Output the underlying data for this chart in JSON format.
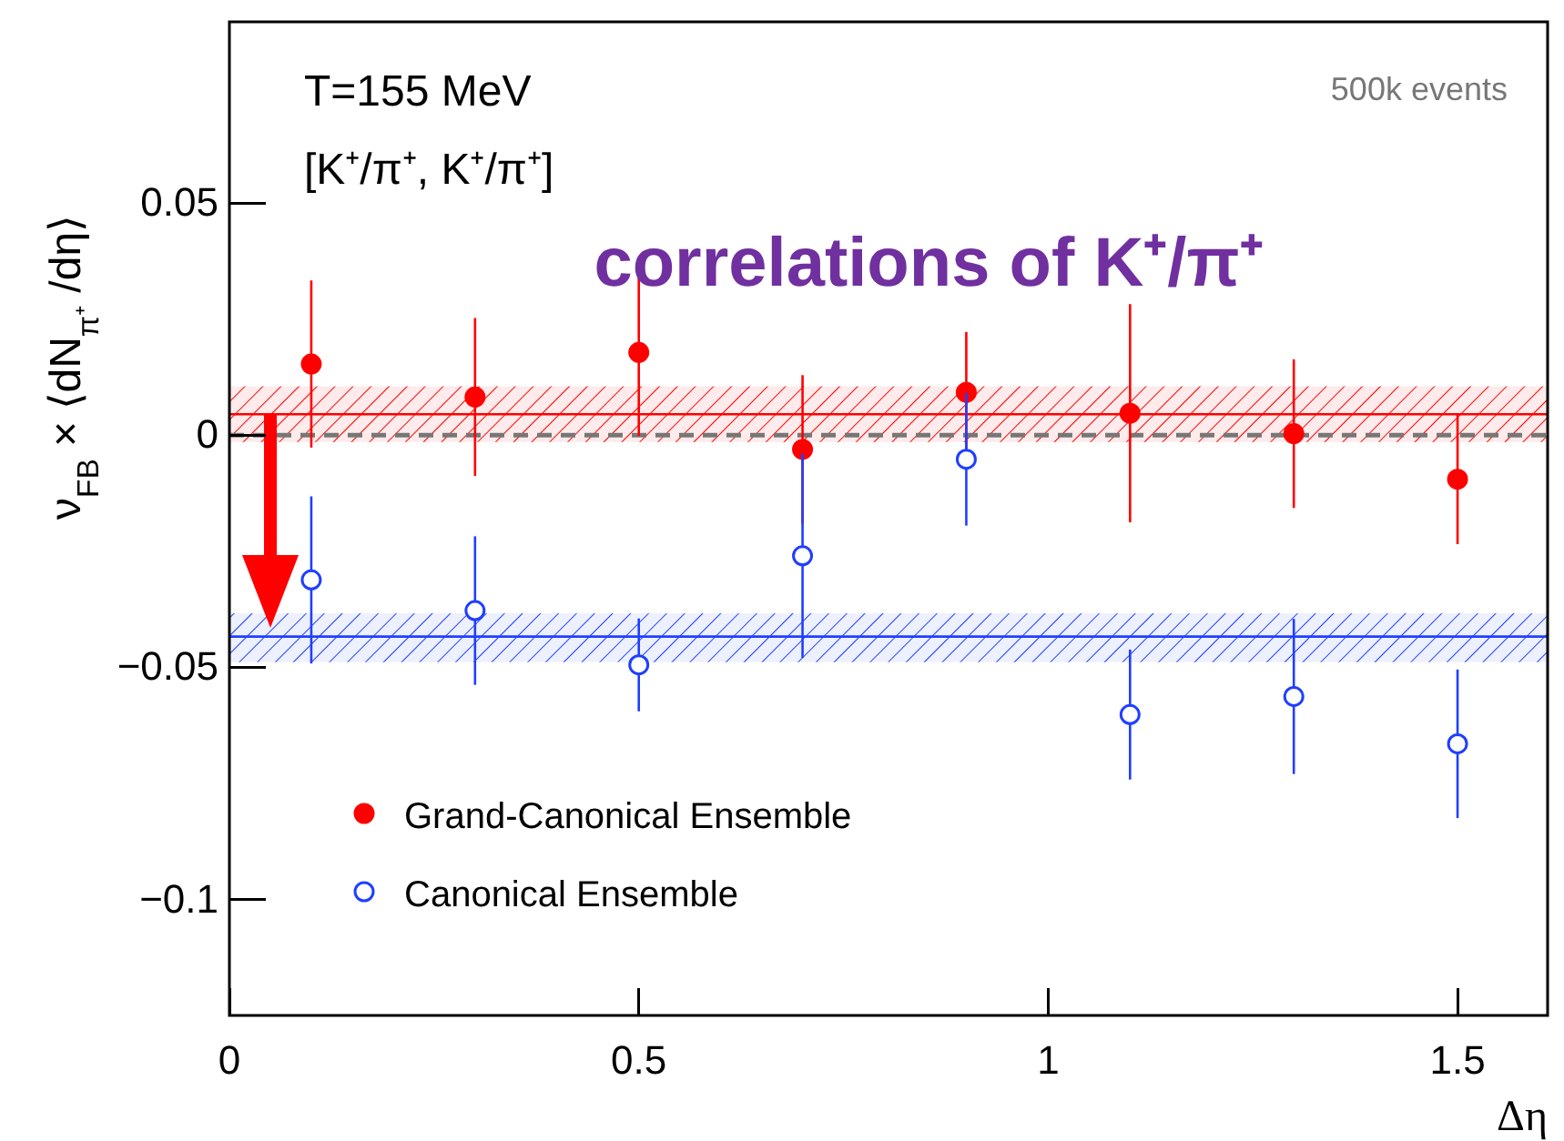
{
  "chart_data": {
    "type": "scatter",
    "xlabel": "Δη",
    "ylabel": "ν$_{FB}$ × ⟨dN$_{π⁺}$/dη⟩",
    "annotations": [
      "T=155 MeV",
      "[K⁺/π⁺, K⁺/π⁺]",
      "500k events",
      "correlations of K⁺/π⁺"
    ],
    "x": [
      0.1,
      0.3,
      0.5,
      0.7,
      0.9,
      1.1,
      1.3,
      1.5
    ],
    "series": [
      {
        "name": "Grand-Canonical Ensemble",
        "color": "#ff0000",
        "values": [
          0.0153,
          0.0082,
          0.0178,
          -0.0031,
          0.0092,
          0.0047,
          0.0003,
          -0.0095
        ],
        "errors": [
          0.018,
          0.017,
          0.018,
          0.016,
          0.013,
          0.0235,
          0.016,
          0.014
        ]
      },
      {
        "name": "Canonical Ensemble",
        "color": "#1f3fff",
        "values": [
          -0.0312,
          -0.0378,
          -0.0495,
          -0.026,
          -0.0052,
          -0.0602,
          -0.0563,
          -0.0665
        ],
        "errors": [
          0.018,
          0.016,
          0.01,
          0.022,
          0.0143,
          0.014,
          0.0167,
          0.016
        ]
      }
    ],
    "ref_lines": [
      {
        "axis": "y",
        "value": 0,
        "color": "#777777",
        "line_style": "dashed"
      },
      {
        "axis": "y",
        "value": 0.0045,
        "color": "#ff0000",
        "line_style": "solid"
      },
      {
        "axis": "y",
        "value": -0.0434,
        "color": "#1f3fff",
        "line_style": "solid"
      }
    ],
    "bands": [
      {
        "axis": "y",
        "from": -0.0015,
        "to": 0.0105,
        "color": "#ff0000"
      },
      {
        "axis": "y",
        "from": -0.0489,
        "to": -0.0384,
        "color": "#1f3fff"
      }
    ],
    "xlim": [
      0,
      1.61
    ],
    "ylim": [
      -0.125,
      0.089
    ],
    "xticks": [
      0,
      0.5,
      1,
      1.5
    ],
    "yticks": [
      {
        "value": -0.1,
        "label": "−0.1"
      },
      {
        "value": -0.05,
        "label": "−0.05"
      },
      0,
      0.05
    ],
    "marker": "circle",
    "legend": "bottom left",
    "grid": false
  }
}
